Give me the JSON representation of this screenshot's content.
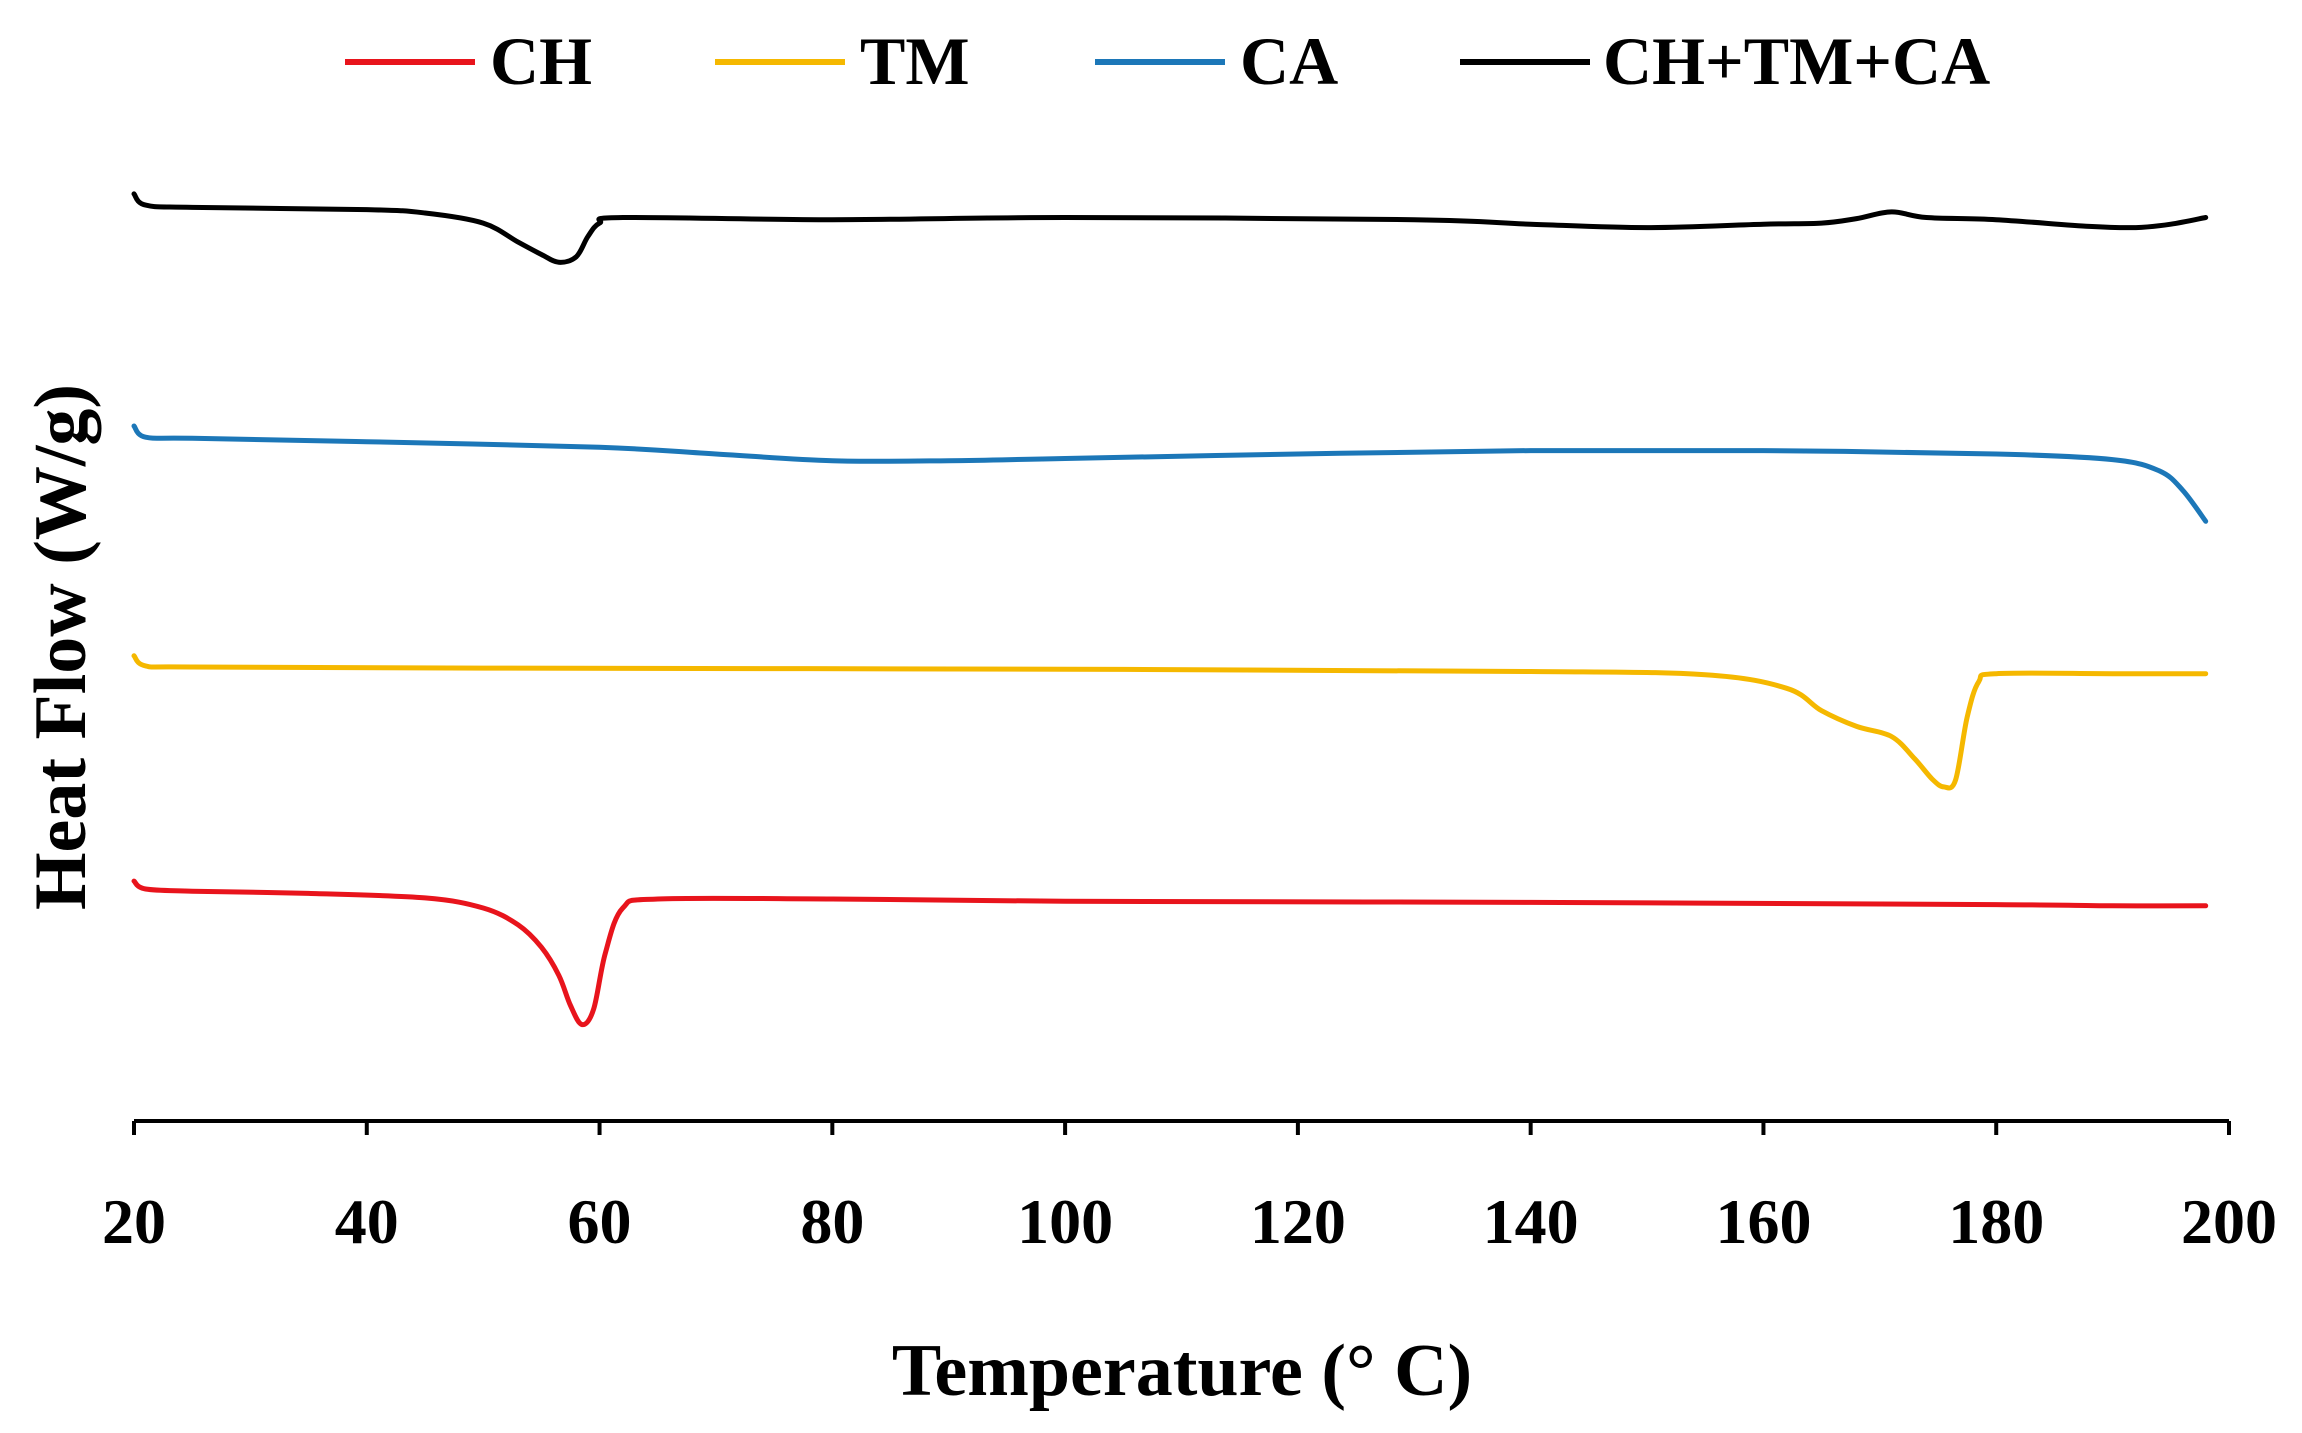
{
  "chart_data": {
    "type": "line",
    "title": "",
    "xlabel": "Temperature (° C)",
    "ylabel": "Heat Flow (W/g)",
    "xlim": [
      20,
      200
    ],
    "xticks": [
      20,
      40,
      60,
      80,
      100,
      120,
      140,
      160,
      180,
      200
    ],
    "x_tick_labels": [
      "20",
      "40",
      "60",
      "80",
      "100",
      "120",
      "140",
      "160",
      "180",
      "200"
    ],
    "y_units": "W/g (relative, curves offset vertically, no numeric scale shown)",
    "ylim": [
      0,
      100
    ],
    "y_ticks_shown": false,
    "grid": false,
    "legend_position": "top",
    "series": [
      {
        "name": "CH",
        "color": "#e8141c",
        "x": [
          20,
          21,
          25,
          35,
          45,
          50,
          53,
          55,
          56.5,
          57.5,
          58.5,
          59.5,
          60.5,
          62,
          65,
          80,
          100,
          140,
          180,
          190,
          198
        ],
        "y": [
          21.4,
          20.7,
          20.5,
          20.3,
          19.9,
          19.0,
          17.5,
          15.5,
          13.0,
          10.3,
          8.6,
          10.0,
          15.0,
          19.0,
          19.8,
          19.8,
          19.6,
          19.5,
          19.3,
          19.2,
          19.2
        ]
      },
      {
        "name": "TM",
        "color": "#f5b800",
        "x": [
          20,
          21,
          25,
          50,
          100,
          140,
          155,
          162,
          165,
          168,
          171,
          173,
          174.5,
          175.5,
          176.5,
          177.5,
          178.5,
          180,
          190,
          198
        ],
        "y": [
          41.5,
          40.6,
          40.5,
          40.4,
          40.3,
          40.1,
          39.8,
          38.6,
          36.6,
          35.2,
          34.3,
          32.3,
          30.5,
          29.8,
          30.4,
          36.0,
          39.2,
          39.9,
          39.9,
          39.9
        ]
      },
      {
        "name": "CA",
        "color": "#1c77b8",
        "x": [
          20,
          21,
          25,
          40,
          60,
          70,
          80,
          90,
          100,
          120,
          140,
          160,
          180,
          190,
          194,
          196,
          198
        ],
        "y": [
          62.0,
          61.0,
          60.9,
          60.6,
          60.1,
          59.5,
          58.9,
          58.9,
          59.1,
          59.5,
          59.8,
          59.8,
          59.5,
          59.0,
          58.0,
          56.3,
          53.5
        ]
      },
      {
        "name": "CH+TM+CA",
        "color": "#000000",
        "x": [
          20,
          21,
          25,
          40,
          45,
          50,
          53,
          55,
          56.5,
          58,
          59,
          60,
          62,
          80,
          100,
          130,
          140,
          150,
          160,
          165,
          168,
          171,
          174,
          180,
          188,
          192,
          195,
          198
        ],
        "y": [
          82.7,
          81.7,
          81.5,
          81.3,
          81.0,
          80.1,
          78.4,
          77.3,
          76.6,
          77.1,
          78.9,
          80.1,
          80.6,
          80.4,
          80.6,
          80.4,
          80.0,
          79.7,
          80.0,
          80.1,
          80.5,
          81.1,
          80.6,
          80.4,
          79.8,
          79.7,
          80.0,
          80.6
        ]
      }
    ]
  }
}
